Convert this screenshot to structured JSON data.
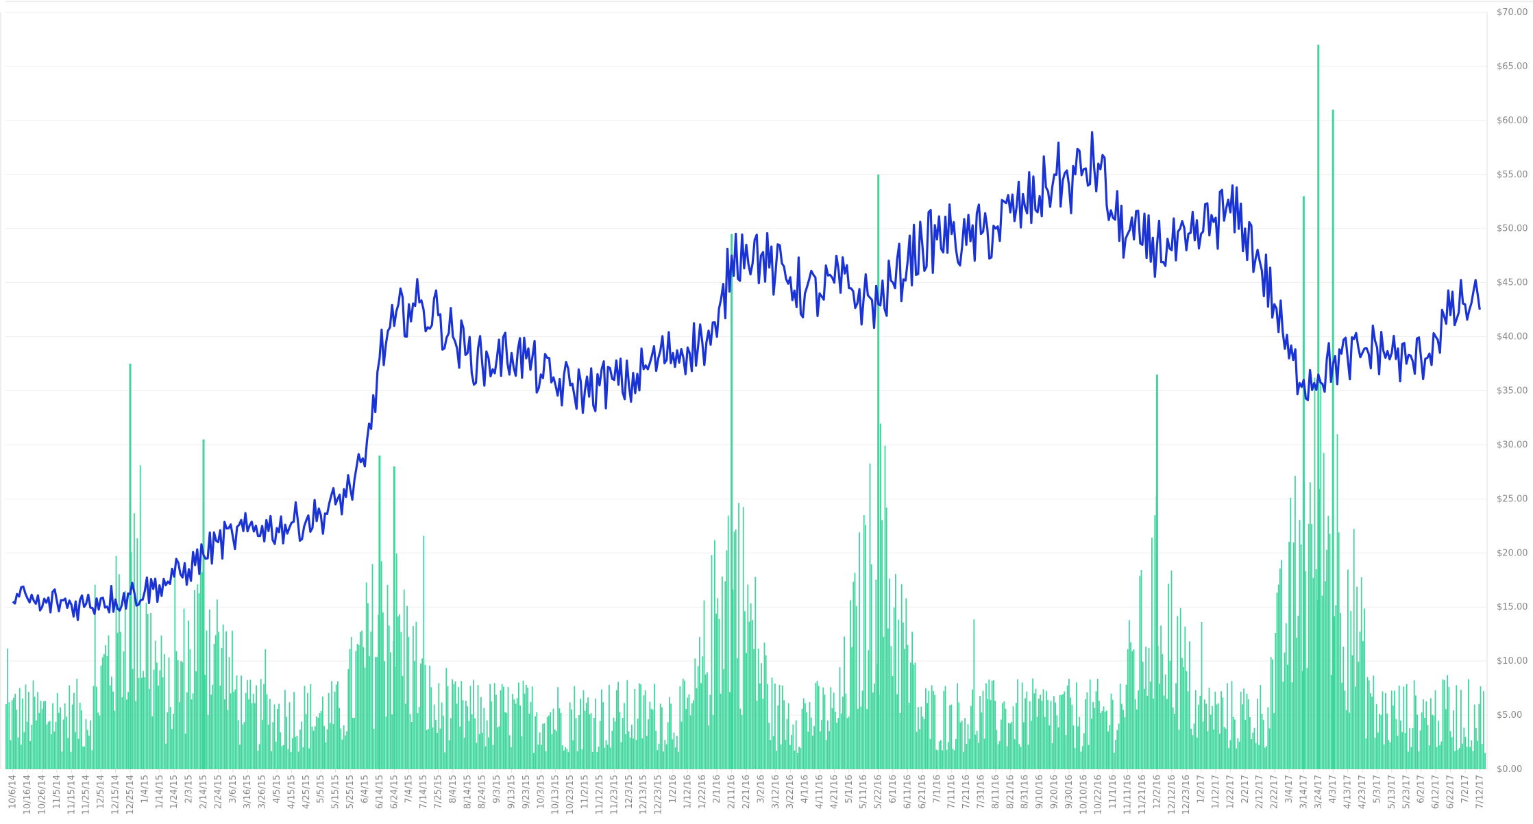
{
  "chart_data": {
    "type": "bar+line",
    "title": "",
    "xlabel": "",
    "ylabel": "",
    "ylim": [
      0,
      70
    ],
    "grid": true,
    "legend": "none",
    "colors": {
      "line": "#1a33d6",
      "bars": "#3ed69c",
      "grid": "#eeeeee",
      "axis": "#dddddd",
      "text": "#888888"
    },
    "y_ticks": [
      "$0.00",
      "$5.00",
      "$10.00",
      "$15.00",
      "$20.00",
      "$25.00",
      "$30.00",
      "$35.00",
      "$40.00",
      "$45.00",
      "$50.00",
      "$55.00",
      "$60.00",
      "$65.00",
      "$70.00"
    ],
    "x_ticks": [
      "10/6/14",
      "10/16/14",
      "10/26/14",
      "11/5/14",
      "11/15/14",
      "11/25/14",
      "12/5/14",
      "12/15/14",
      "12/25/14",
      "1/4/15",
      "1/14/15",
      "1/24/15",
      "2/3/15",
      "2/14/15",
      "2/24/15",
      "3/6/15",
      "3/16/15",
      "3/26/15",
      "4/5/15",
      "4/15/15",
      "4/25/15",
      "5/5/15",
      "5/15/15",
      "5/25/15",
      "6/4/15",
      "6/14/15",
      "6/24/15",
      "7/4/15",
      "7/14/15",
      "7/25/15",
      "8/4/15",
      "8/14/15",
      "8/24/15",
      "9/3/15",
      "9/13/15",
      "9/23/15",
      "10/3/15",
      "10/13/15",
      "10/23/15",
      "11/2/15",
      "11/12/15",
      "11/23/15",
      "12/3/15",
      "12/13/15",
      "12/23/15",
      "1/2/16",
      "1/12/16",
      "1/22/16",
      "2/1/16",
      "2/11/16",
      "2/21/16",
      "3/2/16",
      "3/12/16",
      "3/22/16",
      "4/1/16",
      "4/11/16",
      "4/21/16",
      "5/1/16",
      "5/11/16",
      "5/22/16",
      "6/1/16",
      "6/11/16",
      "6/21/16",
      "7/1/16",
      "7/11/16",
      "7/21/16",
      "7/31/16",
      "8/11/16",
      "8/21/16",
      "8/31/16",
      "9/10/16",
      "9/20/16",
      "9/30/16",
      "10/10/16",
      "10/22/16",
      "11/1/16",
      "11/11/16",
      "11/21/16",
      "12/2/16",
      "12/12/16",
      "12/23/16",
      "1/2/17",
      "1/12/17",
      "1/22/17",
      "2/2/17",
      "2/12/17",
      "2/22/17",
      "3/4/17",
      "3/14/17",
      "3/24/17",
      "4/3/17",
      "4/13/17",
      "4/23/17",
      "5/3/17",
      "5/13/17",
      "5/23/17",
      "6/2/17",
      "6/12/17",
      "6/22/17",
      "7/2/17",
      "7/12/17"
    ],
    "series": [
      {
        "kind": "line",
        "anchor_x_ticks": [
          "10/6/14",
          "10/16/14",
          "10/26/14",
          "11/5/14",
          "11/15/14",
          "11/25/14",
          "12/5/14",
          "12/15/14",
          "12/25/14",
          "1/4/15",
          "1/14/15",
          "1/24/15",
          "2/3/15",
          "2/14/15",
          "2/24/15",
          "3/6/15",
          "3/16/15",
          "3/26/15",
          "4/5/15",
          "4/15/15",
          "4/25/15",
          "5/5/15",
          "5/15/15",
          "5/25/15",
          "6/4/15",
          "6/14/15",
          "6/24/15",
          "7/4/15",
          "7/14/15",
          "7/25/15",
          "8/4/15",
          "8/14/15",
          "8/24/15",
          "9/3/15",
          "9/13/15",
          "9/23/15",
          "10/3/15",
          "10/13/15",
          "10/23/15",
          "11/2/15",
          "11/12/15",
          "11/23/15",
          "12/3/15",
          "12/13/15",
          "12/23/15",
          "1/2/16",
          "1/12/16",
          "1/22/16",
          "2/1/16",
          "2/11/16",
          "2/21/16",
          "3/2/16",
          "3/12/16",
          "3/22/16",
          "4/1/16",
          "4/11/16",
          "4/21/16",
          "5/1/16",
          "5/11/16",
          "5/22/16",
          "6/1/16",
          "6/11/16",
          "6/21/16",
          "7/1/16",
          "7/11/16",
          "7/21/16",
          "7/31/16",
          "8/11/16",
          "8/21/16",
          "8/31/16",
          "9/10/16",
          "9/20/16",
          "9/30/16",
          "10/10/16",
          "10/22/16",
          "11/1/16",
          "11/11/16",
          "11/21/16",
          "12/2/16",
          "12/12/16",
          "12/23/16",
          "1/2/17",
          "1/12/17",
          "1/22/17",
          "2/2/17",
          "2/12/17",
          "2/22/17",
          "3/4/17",
          "3/14/17",
          "3/24/17",
          "4/3/17",
          "4/13/17",
          "4/23/17",
          "5/3/17",
          "5/13/17",
          "5/23/17",
          "6/2/17",
          "6/12/17",
          "6/22/17",
          "7/2/17",
          "7/12/17"
        ],
        "values": [
          15.5,
          15.8,
          15.0,
          15.6,
          15.2,
          15.3,
          15.8,
          15.7,
          16.2,
          16.5,
          17.0,
          17.8,
          18.5,
          19.8,
          21.0,
          21.5,
          22.0,
          22.5,
          22.3,
          22.8,
          23.0,
          23.5,
          24.5,
          26.0,
          28.0,
          38.0,
          41.0,
          43.0,
          42.5,
          42.0,
          40.0,
          38.5,
          37.5,
          38.0,
          38.5,
          38.0,
          36.5,
          35.5,
          35.5,
          35.0,
          35.5,
          36.0,
          35.5,
          37.0,
          38.0,
          38.5,
          39.0,
          39.5,
          40.0,
          47.5,
          48.5,
          47.5,
          46.0,
          45.5,
          44.0,
          44.0,
          45.0,
          44.5,
          43.5,
          43.0,
          45.0,
          47.0,
          48.5,
          49.0,
          49.5,
          48.5,
          49.5,
          50.0,
          51.5,
          52.0,
          53.0,
          55.0,
          54.0,
          55.5,
          56.0,
          51.0,
          49.5,
          48.5,
          48.5,
          48.0,
          48.0,
          49.5,
          51.0,
          51.5,
          50.0,
          47.0,
          43.0,
          38.0,
          36.0,
          36.5,
          37.5,
          38.0,
          38.5,
          39.0,
          38.5,
          37.5,
          38.0,
          40.0,
          42.0,
          43.0,
          42.5
        ]
      },
      {
        "kind": "bar",
        "anchor_x_ticks": [
          "12/25/14",
          "2/14/15",
          "6/14/15",
          "6/24/15",
          "2/11/16",
          "5/22/16",
          "12/2/16",
          "3/14/17",
          "3/24/17",
          "4/3/17"
        ],
        "spike_values": [
          37.5,
          30.5,
          29.0,
          28.0,
          49.5,
          55.0,
          36.5,
          53.0,
          67.0,
          61.0
        ]
      }
    ]
  }
}
